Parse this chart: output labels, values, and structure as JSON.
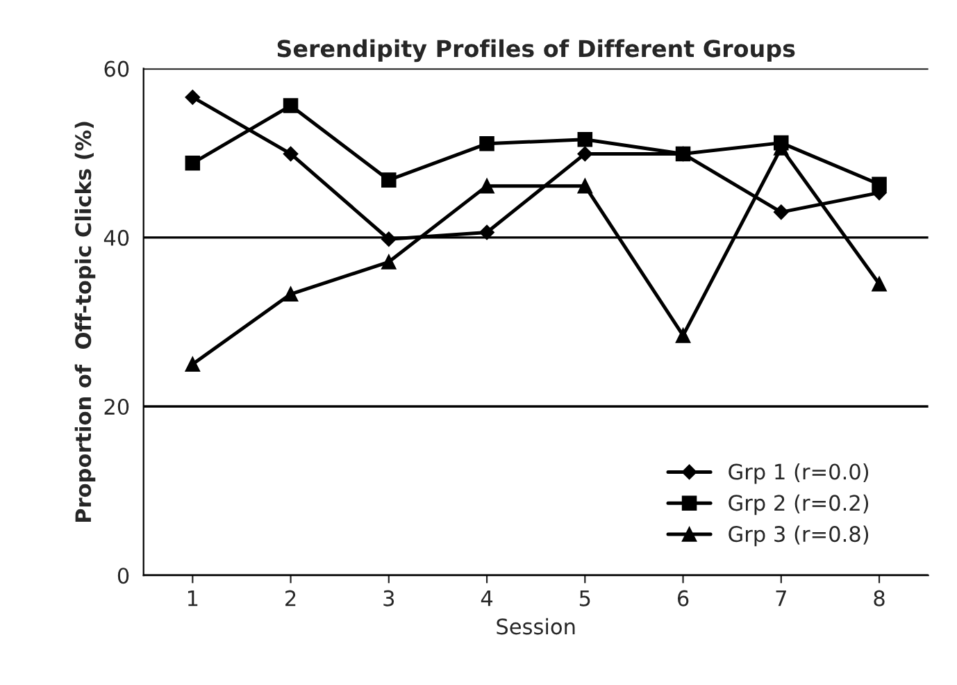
{
  "chart_data": {
    "type": "line",
    "title": "Serendipity Profiles of Different Groups",
    "xlabel": "Session",
    "ylabel": "Proportion of  Off-topic Clicks (%)",
    "categories": [
      "1",
      "2",
      "3",
      "4",
      "5",
      "6",
      "7",
      "8"
    ],
    "series": [
      {
        "name": "Grp 1 (r=0.0)",
        "color": "#000000",
        "marker": "diamond",
        "values": [
          56.6,
          49.9,
          39.8,
          40.6,
          49.9,
          49.9,
          43.0,
          45.3
        ]
      },
      {
        "name": "Grp 2 (r=0.2)",
        "color": "#000000",
        "marker": "square",
        "values": [
          48.8,
          55.6,
          46.8,
          51.1,
          51.6,
          49.9,
          51.2,
          46.3
        ]
      },
      {
        "name": "Grp 3 (r=0.8)",
        "color": "#000000",
        "marker": "triangle",
        "values": [
          25.0,
          33.3,
          37.1,
          46.1,
          46.1,
          28.4,
          50.6,
          34.5
        ]
      }
    ],
    "ylim": [
      0,
      60
    ],
    "yticks": [
      0,
      20,
      40,
      60
    ],
    "grid": "y",
    "legend": "bottom right",
    "line_style": "solid"
  }
}
